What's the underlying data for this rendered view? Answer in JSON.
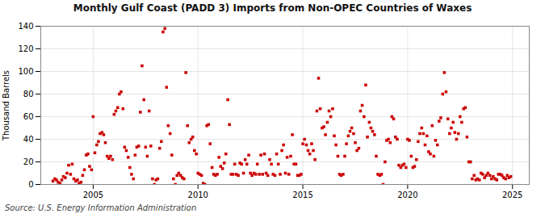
{
  "chart_data": {
    "type": "scatter",
    "title": "Monthly Gulf Coast (PADD 3) Imports from Non-OPEC Countries of Waxes",
    "ylabel": "Thousand Barrels",
    "source": "Source: U.S. Energy Information Administration",
    "color": "#cc0000",
    "marker": "square",
    "grid": true,
    "xlim": [
      2002.5,
      2025.8
    ],
    "xticks": [
      2005,
      2010,
      2015,
      2020,
      2025
    ],
    "ylim": [
      0,
      140
    ],
    "yticks": [
      0,
      20,
      40,
      60,
      80,
      100,
      120,
      140
    ],
    "x": [
      2003.08,
      2003.17,
      2003.25,
      2003.33,
      2003.42,
      2003.5,
      2003.58,
      2003.67,
      2003.75,
      2003.83,
      2003.92,
      2004.0,
      2004.08,
      2004.17,
      2004.25,
      2004.33,
      2004.42,
      2004.5,
      2004.58,
      2004.67,
      2004.75,
      2004.83,
      2004.92,
      2005.0,
      2005.08,
      2005.17,
      2005.25,
      2005.33,
      2005.42,
      2005.5,
      2005.58,
      2005.67,
      2005.75,
      2005.83,
      2005.92,
      2006.0,
      2006.08,
      2006.17,
      2006.25,
      2006.33,
      2006.42,
      2006.5,
      2006.58,
      2006.67,
      2006.75,
      2006.83,
      2006.92,
      2007.0,
      2007.08,
      2007.17,
      2007.25,
      2007.33,
      2007.42,
      2007.5,
      2007.58,
      2007.67,
      2007.75,
      2007.83,
      2007.92,
      2008.0,
      2008.08,
      2008.17,
      2008.25,
      2008.33,
      2008.42,
      2008.5,
      2008.58,
      2008.67,
      2008.75,
      2008.83,
      2008.92,
      2009.0,
      2009.08,
      2009.17,
      2009.25,
      2009.33,
      2009.42,
      2009.5,
      2009.58,
      2009.67,
      2009.75,
      2009.83,
      2009.92,
      2010.0,
      2010.08,
      2010.17,
      2010.25,
      2010.33,
      2010.42,
      2010.5,
      2010.58,
      2010.67,
      2010.75,
      2010.83,
      2010.92,
      2011.0,
      2011.08,
      2011.17,
      2011.25,
      2011.33,
      2011.42,
      2011.5,
      2011.58,
      2011.67,
      2011.75,
      2011.83,
      2011.92,
      2012.0,
      2012.08,
      2012.17,
      2012.25,
      2012.33,
      2012.42,
      2012.5,
      2012.58,
      2012.67,
      2012.75,
      2012.83,
      2012.92,
      2013.0,
      2013.08,
      2013.17,
      2013.25,
      2013.33,
      2013.42,
      2013.5,
      2013.58,
      2013.67,
      2013.75,
      2013.83,
      2013.92,
      2014.0,
      2014.08,
      2014.17,
      2014.25,
      2014.33,
      2014.42,
      2014.5,
      2014.58,
      2014.67,
      2014.75,
      2014.83,
      2014.92,
      2015.0,
      2015.08,
      2015.17,
      2015.25,
      2015.33,
      2015.42,
      2015.5,
      2015.58,
      2015.67,
      2015.75,
      2015.83,
      2015.92,
      2016.0,
      2016.08,
      2016.17,
      2016.25,
      2016.33,
      2016.42,
      2016.5,
      2016.58,
      2016.67,
      2016.75,
      2016.83,
      2016.92,
      2017.0,
      2017.08,
      2017.17,
      2017.25,
      2017.33,
      2017.42,
      2017.5,
      2017.58,
      2017.67,
      2017.75,
      2017.83,
      2017.92,
      2018.0,
      2018.08,
      2018.17,
      2018.25,
      2018.33,
      2018.42,
      2018.5,
      2018.58,
      2018.67,
      2018.75,
      2018.83,
      2018.92,
      2019.0,
      2019.08,
      2019.17,
      2019.25,
      2019.33,
      2019.42,
      2019.5,
      2019.58,
      2019.67,
      2019.75,
      2019.83,
      2019.92,
      2020.0,
      2020.08,
      2020.17,
      2020.25,
      2020.33,
      2020.42,
      2020.5,
      2020.58,
      2020.67,
      2020.75,
      2020.83,
      2020.92,
      2021.0,
      2021.08,
      2021.17,
      2021.25,
      2021.33,
      2021.42,
      2021.5,
      2021.58,
      2021.67,
      2021.75,
      2021.83,
      2021.92,
      2022.0,
      2022.08,
      2022.17,
      2022.25,
      2022.33,
      2022.42,
      2022.5,
      2022.58,
      2022.67,
      2022.75,
      2022.83,
      2022.92,
      2023.0,
      2023.08,
      2023.17,
      2023.25,
      2023.33,
      2023.42,
      2023.5,
      2023.58,
      2023.67,
      2023.75,
      2023.83,
      2023.92,
      2024.0,
      2024.08,
      2024.17,
      2024.25,
      2024.33,
      2024.42,
      2024.5,
      2024.58,
      2024.67,
      2024.75,
      2024.83,
      2024.92
    ],
    "values": [
      3,
      5,
      4,
      2,
      1,
      4,
      7,
      6,
      10,
      17,
      9,
      18,
      5,
      3,
      4,
      1,
      2,
      8,
      13,
      26,
      27,
      16,
      13,
      60,
      28,
      35,
      38,
      45,
      46,
      44,
      37,
      25,
      23,
      25,
      22,
      62,
      65,
      68,
      80,
      82,
      67,
      33,
      30,
      24,
      15,
      9,
      5,
      26,
      33,
      34,
      64,
      105,
      75,
      33,
      25,
      65,
      34,
      5,
      0,
      4,
      5,
      32,
      38,
      135,
      138,
      86,
      52,
      45,
      26,
      5,
      0,
      8,
      10,
      8,
      6,
      5,
      99,
      52,
      37,
      40,
      42,
      30,
      27,
      10,
      9,
      8,
      1,
      0,
      52,
      53,
      36,
      15,
      9,
      8,
      9,
      24,
      16,
      14,
      19,
      27,
      75,
      53,
      9,
      9,
      18,
      9,
      8,
      19,
      18,
      10,
      22,
      18,
      26,
      10,
      8,
      10,
      9,
      18,
      9,
      26,
      9,
      27,
      10,
      8,
      22,
      18,
      9,
      8,
      27,
      18,
      9,
      30,
      35,
      10,
      24,
      9,
      25,
      44,
      18,
      18,
      8,
      8,
      9,
      36,
      40,
      35,
      30,
      27,
      36,
      30,
      22,
      65,
      94,
      67,
      50,
      51,
      44,
      55,
      65,
      60,
      67,
      43,
      35,
      25,
      9,
      8,
      9,
      25,
      36,
      43,
      47,
      50,
      45,
      37,
      30,
      32,
      65,
      70,
      60,
      88,
      42,
      55,
      50,
      47,
      44,
      25,
      9,
      8,
      9,
      0,
      20,
      39,
      40,
      37,
      60,
      58,
      42,
      40,
      17,
      15,
      17,
      18,
      15,
      40,
      39,
      25,
      15,
      16,
      22,
      38,
      45,
      50,
      45,
      35,
      43,
      29,
      27,
      52,
      25,
      39,
      35,
      56,
      59,
      80,
      99,
      82,
      58,
      45,
      50,
      55,
      46,
      40,
      45,
      60,
      55,
      67,
      68,
      42,
      20,
      20,
      5,
      8,
      4,
      5,
      4,
      10,
      9,
      6,
      8,
      10,
      8,
      5,
      7,
      5,
      4,
      9,
      9,
      8,
      6,
      5,
      8,
      6,
      7
    ]
  }
}
